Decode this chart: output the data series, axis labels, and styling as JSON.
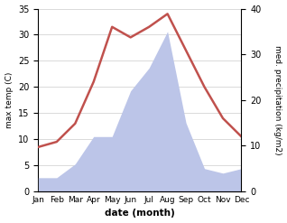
{
  "months": [
    "Jan",
    "Feb",
    "Mar",
    "Apr",
    "May",
    "Jun",
    "Jul",
    "Aug",
    "Sep",
    "Oct",
    "Nov",
    "Dec"
  ],
  "temperature": [
    8.5,
    9.5,
    13,
    21,
    31.5,
    29.5,
    31.5,
    34,
    27,
    20,
    14,
    10.5
  ],
  "precipitation": [
    3,
    3,
    6,
    12,
    12,
    22,
    27,
    35,
    15,
    5,
    4,
    5
  ],
  "temp_color": "#c0514d",
  "precip_fill_color": "#bcc5e8",
  "ylabel_left": "max temp (C)",
  "ylabel_right": "med. precipitation (kg/m2)",
  "xlabel": "date (month)",
  "ylim_left": [
    0,
    35
  ],
  "ylim_right": [
    0,
    40
  ],
  "yticks_left": [
    0,
    5,
    10,
    15,
    20,
    25,
    30,
    35
  ],
  "yticks_right": [
    0,
    10,
    20,
    30,
    40
  ],
  "grid_color": "#cccccc",
  "background_color": "#ffffff"
}
